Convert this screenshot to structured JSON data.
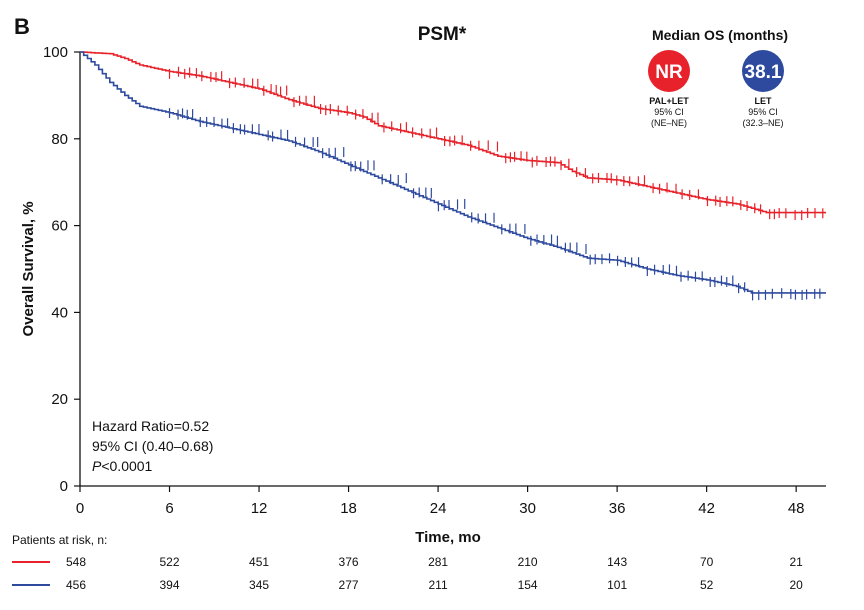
{
  "chart_data": {
    "type": "line",
    "panel_letter": "B",
    "title": "PSM*",
    "xlabel": "Time, mo",
    "ylabel": "Overall Survival, %",
    "xlim": [
      0,
      50
    ],
    "ylim": [
      0,
      100
    ],
    "x_ticks": [
      0,
      6,
      12,
      18,
      24,
      30,
      36,
      42,
      48
    ],
    "y_ticks": [
      0,
      20,
      40,
      60,
      80,
      100
    ],
    "series": [
      {
        "name": "PAL+LET",
        "color": "#e8222b",
        "points": [
          [
            0,
            100
          ],
          [
            2,
            99.6
          ],
          [
            3,
            98.5
          ],
          [
            4,
            97
          ],
          [
            6,
            95.5
          ],
          [
            8,
            94.5
          ],
          [
            10,
            93
          ],
          [
            12,
            91.5
          ],
          [
            14,
            89
          ],
          [
            16,
            87
          ],
          [
            18,
            86
          ],
          [
            19,
            85
          ],
          [
            20,
            83
          ],
          [
            22,
            81.5
          ],
          [
            24,
            80
          ],
          [
            26,
            78.5
          ],
          [
            28,
            76
          ],
          [
            30,
            75
          ],
          [
            32,
            74.5
          ],
          [
            33,
            72.5
          ],
          [
            34,
            71
          ],
          [
            36,
            70.5
          ],
          [
            38,
            69
          ],
          [
            40,
            67.5
          ],
          [
            42,
            66
          ],
          [
            44,
            65
          ],
          [
            45,
            64
          ],
          [
            46,
            63
          ],
          [
            50,
            63
          ]
        ]
      },
      {
        "name": "LET",
        "color": "#2e4a9e",
        "points": [
          [
            0,
            100
          ],
          [
            1,
            97
          ],
          [
            2,
            93
          ],
          [
            3,
            90
          ],
          [
            4,
            87.5
          ],
          [
            6,
            86
          ],
          [
            8,
            84
          ],
          [
            10,
            82.5
          ],
          [
            12,
            81
          ],
          [
            14,
            79.5
          ],
          [
            16,
            77
          ],
          [
            18,
            74
          ],
          [
            20,
            71
          ],
          [
            22,
            68
          ],
          [
            24,
            65
          ],
          [
            26,
            62
          ],
          [
            28,
            59.5
          ],
          [
            30,
            57
          ],
          [
            32,
            55
          ],
          [
            34,
            52.5
          ],
          [
            36,
            52
          ],
          [
            38,
            50
          ],
          [
            40,
            48.5
          ],
          [
            42,
            47.5
          ],
          [
            44,
            46
          ],
          [
            45,
            44.5
          ],
          [
            50,
            44.5
          ]
        ]
      }
    ],
    "legend": {
      "title": "Median OS (months)",
      "items": [
        {
          "value": "NR",
          "color": "#e8222b",
          "arm": "PAL+LET",
          "ci_label": "95% CI",
          "ci": "(NE–NE)"
        },
        {
          "value": "38.1",
          "color": "#2e4a9e",
          "arm": "LET",
          "ci_label": "95% CI",
          "ci": "(32.3–NE)"
        }
      ]
    },
    "stats": {
      "hr": "Hazard Ratio=0.52",
      "ci": "95% CI (0.40–0.68)",
      "p_italic": "P",
      "p_rest": "<0.0001"
    },
    "at_risk": {
      "title": "Patients at risk, n:",
      "rows": [
        {
          "color": "#e8222b",
          "values": [
            548,
            522,
            451,
            376,
            281,
            210,
            143,
            70,
            21
          ]
        },
        {
          "color": "#2e4a9e",
          "values": [
            456,
            394,
            345,
            277,
            211,
            154,
            101,
            52,
            20
          ]
        }
      ]
    }
  }
}
